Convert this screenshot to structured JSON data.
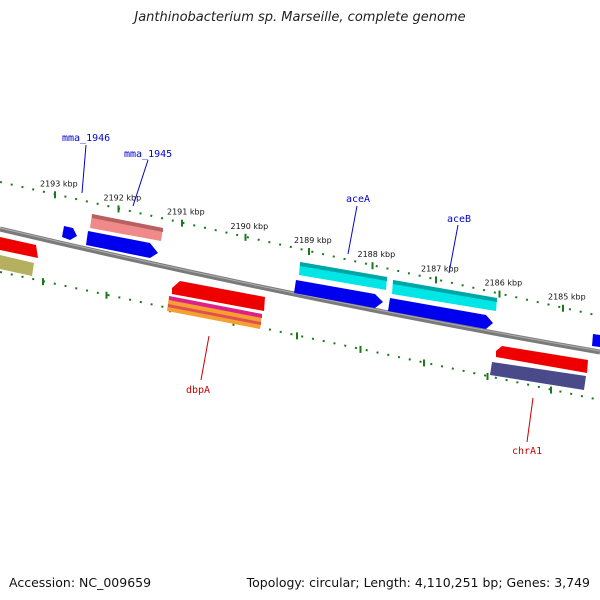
{
  "title": "Janthinobacterium sp. Marseille, complete genome",
  "accession": "Accession: NC_009659",
  "summary": "Topology: circular; Length: 4,110,251 bp; Genes: 3,749",
  "ticks": [
    "2193 kbp",
    "2192 kbp",
    "2191 kbp",
    "2190 kbp",
    "2189 kbp",
    "2188 kbp",
    "2187 kbp",
    "2186 kbp",
    "2185 kbp"
  ],
  "gene_labels_top": [
    "mma_1946",
    "mma_1945",
    "aceA",
    "aceB"
  ],
  "gene_labels_bottom": [
    "dbpA",
    "chrA1"
  ],
  "colors": {
    "backbone": "#808080",
    "tick_marks": "#1a7a1a",
    "label_top": "#0000cc",
    "label_bottom": "#cc0000",
    "cds_blue": "#0000ee",
    "cds_cyan": "#00e5e5",
    "cds_red": "#ee0000",
    "pink": "#f08a8a",
    "olive": "#b5b060",
    "slate": "#4a4a8a"
  }
}
